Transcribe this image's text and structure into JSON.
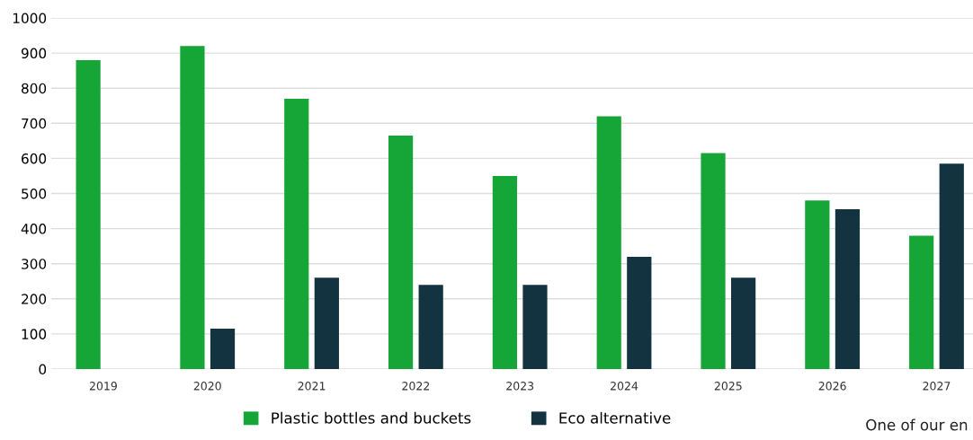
{
  "chart_data": {
    "type": "bar",
    "categories": [
      "2019",
      "2020",
      "2021",
      "2022",
      "2023",
      "2024",
      "2025",
      "2026",
      "2027"
    ],
    "series": [
      {
        "name": "Plastic bottles and buckets",
        "color": "#16a637",
        "values": [
          880,
          920,
          770,
          665,
          550,
          720,
          615,
          480,
          380
        ]
      },
      {
        "name": "Eco alternative",
        "color": "#12333f",
        "values": [
          null,
          115,
          260,
          240,
          240,
          320,
          260,
          455,
          585
        ]
      }
    ],
    "ylim": [
      0,
      1000
    ],
    "yticks": [
      0,
      100,
      200,
      300,
      400,
      500,
      600,
      700,
      800,
      900,
      1000
    ],
    "grid": "y",
    "legend": "bottom",
    "annotations": [
      "One of our en"
    ]
  }
}
